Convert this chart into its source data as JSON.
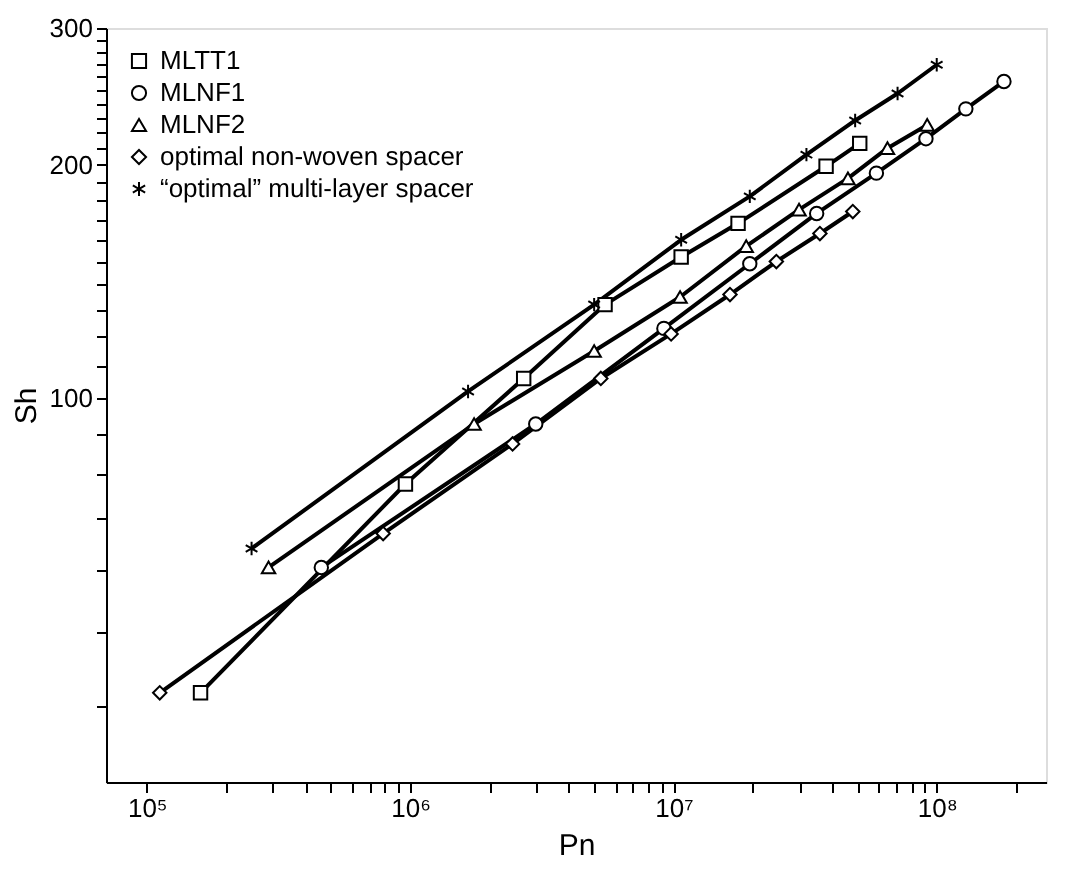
{
  "chart_data": {
    "type": "line",
    "xlabel": "Pn",
    "ylabel": "Sh",
    "log": "xy",
    "legend": "top left",
    "grid": false,
    "line_style": "solid",
    "xlim": [
      70000,
      260000000
    ],
    "ylim": [
      32,
      300
    ],
    "xticks": [
      {
        "value": 100000,
        "label": "10⁵"
      },
      {
        "value": 200000,
        "label": null
      },
      {
        "value": 300000,
        "label": null
      },
      {
        "value": 400000,
        "label": null
      },
      {
        "value": 500000,
        "label": null
      },
      {
        "value": 600000,
        "label": null
      },
      {
        "value": 700000,
        "label": null
      },
      {
        "value": 800000,
        "label": null
      },
      {
        "value": 900000,
        "label": null
      },
      {
        "value": 1000000,
        "label": "10⁶"
      },
      {
        "value": 2000000,
        "label": null
      },
      {
        "value": 3000000,
        "label": null
      },
      {
        "value": 4000000,
        "label": null
      },
      {
        "value": 5000000,
        "label": null
      },
      {
        "value": 6000000,
        "label": null
      },
      {
        "value": 7000000,
        "label": null
      },
      {
        "value": 8000000,
        "label": null
      },
      {
        "value": 9000000,
        "label": null
      },
      {
        "value": 10000000,
        "label": "10⁷"
      },
      {
        "value": 20000000,
        "label": null
      },
      {
        "value": 30000000,
        "label": null
      },
      {
        "value": 40000000,
        "label": null
      },
      {
        "value": 50000000,
        "label": null
      },
      {
        "value": 60000000,
        "label": null
      },
      {
        "value": 70000000,
        "label": null
      },
      {
        "value": 80000000,
        "label": null
      },
      {
        "value": 90000000,
        "label": null
      },
      {
        "value": 100000000,
        "label": "10⁸"
      },
      {
        "value": 200000000,
        "label": null
      }
    ],
    "yticks": [
      {
        "value": 40,
        "label": null
      },
      {
        "value": 50,
        "label": null
      },
      {
        "value": 60,
        "label": null
      },
      {
        "value": 70,
        "label": null
      },
      {
        "value": 80,
        "label": null
      },
      {
        "value": 90,
        "label": null
      },
      100,
      {
        "value": 110,
        "label": null
      },
      {
        "value": 120,
        "label": null
      },
      {
        "value": 130,
        "label": null
      },
      {
        "value": 140,
        "label": null
      },
      {
        "value": 150,
        "label": null
      },
      {
        "value": 160,
        "label": null
      },
      {
        "value": 170,
        "label": null
      },
      {
        "value": 180,
        "label": null
      },
      {
        "value": 190,
        "label": null
      },
      200,
      {
        "value": 210,
        "label": null
      },
      {
        "value": 220,
        "label": null
      },
      {
        "value": 230,
        "label": null
      },
      {
        "value": 240,
        "label": null
      },
      {
        "value": 250,
        "label": null
      },
      {
        "value": 260,
        "label": null
      },
      {
        "value": 270,
        "label": null
      },
      {
        "value": 280,
        "label": null
      },
      {
        "value": 290,
        "label": null
      },
      300
    ],
    "series": [
      {
        "name": "MLTT1",
        "color": "#000000",
        "marker": "square",
        "x": [
          160000,
          960000,
          2700000,
          5500000,
          10700000,
          17600000,
          38000000,
          51000000
        ],
        "values": [
          41.7,
          77.5,
          106,
          132,
          152,
          168,
          199,
          213
        ]
      },
      {
        "name": "MLNF1",
        "color": "#000000",
        "marker": "circle",
        "x": [
          460000,
          3000000,
          9200000,
          19500000,
          35000000,
          59000000,
          91000000,
          129000000,
          180000000
        ],
        "values": [
          60.5,
          92.6,
          123,
          149,
          173,
          195,
          216,
          236,
          256
        ]
      },
      {
        "name": "MLNF2",
        "color": "#000000",
        "marker": "triangle",
        "x": [
          290000,
          1750000,
          5000000,
          10600000,
          18900000,
          30000000,
          46000000,
          65000000,
          92000000
        ],
        "values": [
          60.5,
          92.6,
          115,
          135,
          157,
          175,
          192,
          210,
          225
        ]
      },
      {
        "name": "optimal non-woven spacer",
        "color": "#000000",
        "marker": "diamond",
        "x": [
          112000,
          790000,
          2450000,
          5300000,
          9800000,
          16400000,
          24600000,
          36000000,
          48000000
        ],
        "values": [
          41.7,
          66.9,
          87.3,
          106,
          121,
          136,
          150,
          163,
          174
        ]
      },
      {
        "name": "“optimal” multi-layer spacer",
        "color": "#000000",
        "marker": "cross",
        "x": [
          250000,
          1660000,
          5000000,
          10700000,
          19500000,
          32000000,
          49000000,
          71000000,
          100000000
        ],
        "values": [
          64,
          102,
          132,
          160,
          182,
          206,
          228,
          247,
          269
        ]
      }
    ]
  }
}
